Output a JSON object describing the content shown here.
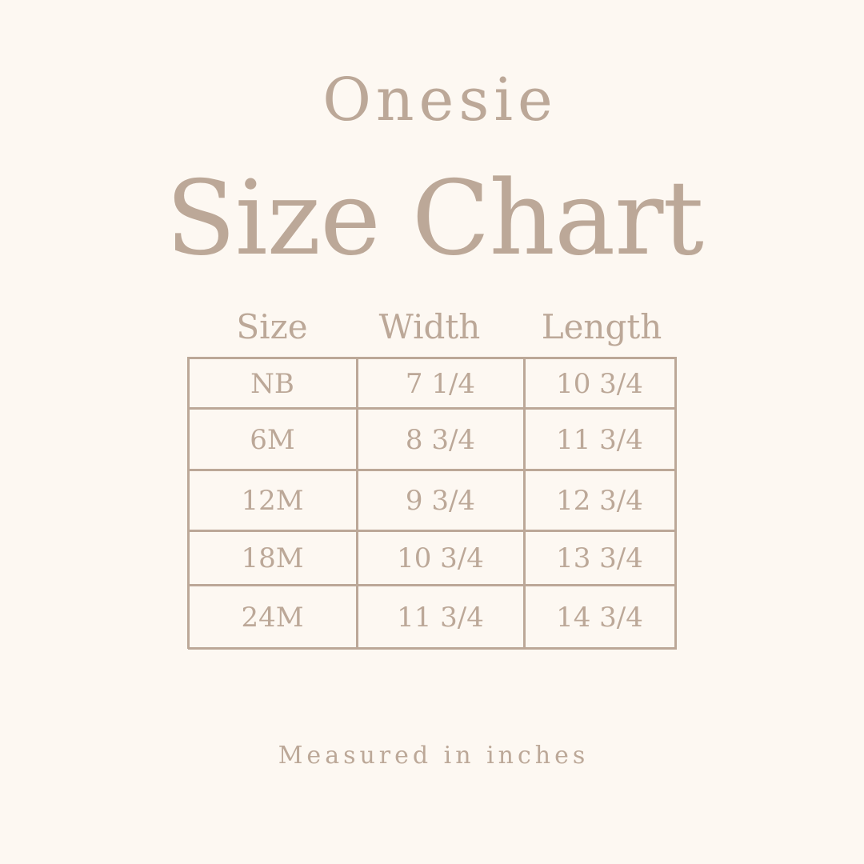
{
  "subtitle": "Onesie",
  "title": "Size Chart",
  "table": {
    "headers": [
      "Size",
      "Width",
      "Length"
    ],
    "rows": [
      [
        "NB",
        "7 1/4",
        "10 3/4"
      ],
      [
        "6M",
        "8 3/4",
        "11 3/4"
      ],
      [
        "12M",
        "9 3/4",
        "12 3/4"
      ],
      [
        "18M",
        "10 3/4",
        "13 3/4"
      ],
      [
        "24M",
        "11 3/4",
        "14 3/4"
      ]
    ]
  },
  "footer": "Measured in inches",
  "colors": {
    "background": "#fdf8f2",
    "text": "#bca898",
    "lines": "#bca898"
  }
}
